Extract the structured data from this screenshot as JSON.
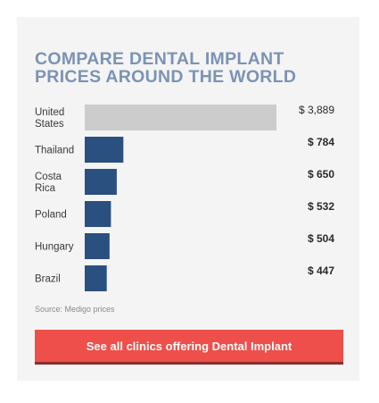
{
  "card": {
    "source": "Source: Medigo prices",
    "cta_label": "See all clinics offering Dental Implant"
  },
  "colors": {
    "title": "#7b93b5",
    "highlight_bar": "#cccccc",
    "bar": "#2a5080",
    "cta": "#ee4f4a"
  },
  "chart_data": {
    "type": "bar",
    "orientation": "horizontal",
    "title": "COMPARE DENTAL IMPLANT PRICES AROUND THE WORLD",
    "categories": [
      [
        "United",
        "States"
      ],
      [
        "Thailand"
      ],
      [
        "Costa",
        "Rica"
      ],
      [
        "Poland"
      ],
      [
        "Hungary"
      ],
      [
        "Brazil"
      ]
    ],
    "values": [
      3889,
      784,
      650,
      532,
      504,
      447
    ],
    "value_labels": [
      "$ 3,889",
      "$ 784",
      "$ 650",
      "$ 532",
      "$ 504",
      "$ 447"
    ],
    "xlim": [
      0,
      3889
    ],
    "grid": false,
    "legend": "none"
  }
}
